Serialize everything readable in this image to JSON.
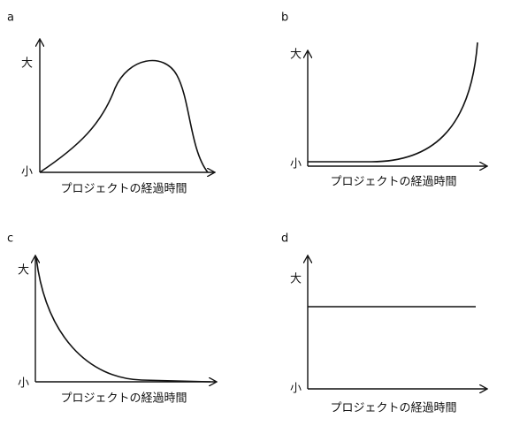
{
  "panels": [
    {
      "label": "a",
      "y_max": "大",
      "y_min": "小",
      "x_label": "プロジェクトの経過時間"
    },
    {
      "label": "b",
      "y_max": "大",
      "y_min": "小",
      "x_label": "プロジェクトの経過時間"
    },
    {
      "label": "c",
      "y_max": "大",
      "y_min": "小",
      "x_label": "プロジェクトの経過時間"
    },
    {
      "label": "d",
      "y_max": "大",
      "y_min": "小",
      "x_label": "プロジェクトの経過時間"
    }
  ]
}
